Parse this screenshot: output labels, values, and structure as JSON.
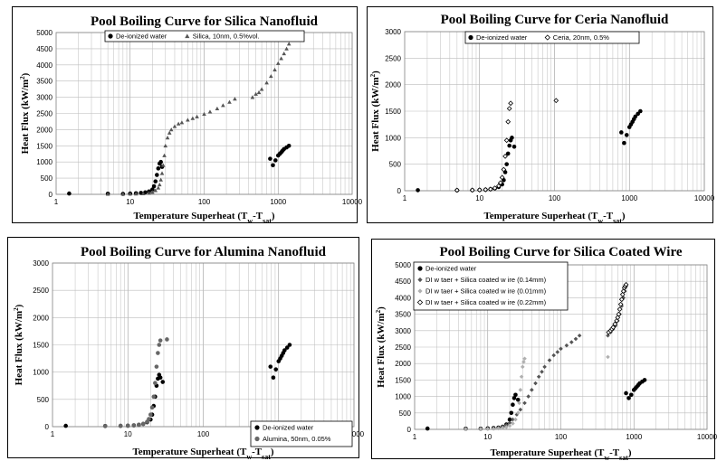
{
  "chart_data": [
    {
      "type": "scatter",
      "title": "Pool Boiling Curve for Silica Nanofluid",
      "xlabel": "Temperature Superheat (Tw-Tsat)",
      "ylabel": "Heat Flux (kW/m2)",
      "xscale": "log",
      "xlim": [
        1,
        10000
      ],
      "ylim": [
        0,
        5000
      ],
      "xticks": [
        "1",
        "10",
        "100",
        "1000",
        "10000"
      ],
      "yticks": [
        "0",
        "500",
        "1000",
        "1500",
        "2000",
        "2500",
        "3000",
        "3500",
        "4000",
        "4500",
        "5000"
      ],
      "grid": true,
      "legend_position": "top",
      "series": [
        {
          "name": "De-ionized water",
          "marker": "circle",
          "color": "#000000",
          "x": [
            1.5,
            5,
            8,
            10,
            12,
            14,
            16,
            18,
            20,
            21,
            22,
            23,
            24,
            25,
            26,
            27,
            780,
            850,
            920,
            1000,
            1050,
            1100,
            1150,
            1200,
            1300,
            1400
          ],
          "y": [
            25,
            20,
            15,
            25,
            35,
            45,
            60,
            90,
            150,
            250,
            400,
            600,
            800,
            950,
            1000,
            850,
            1100,
            900,
            1050,
            1200,
            1250,
            1300,
            1350,
            1400,
            1450,
            1500
          ]
        },
        {
          "name": "Silica, 10nm, 0.5%vol.",
          "marker": "triangle",
          "color": "#555555",
          "x": [
            5,
            8,
            10,
            12,
            15,
            18,
            20,
            22,
            24,
            25,
            26,
            27,
            28,
            29,
            30,
            32,
            34,
            36,
            40,
            45,
            50,
            60,
            70,
            80,
            100,
            120,
            150,
            180,
            220,
            260,
            450,
            500,
            550,
            600,
            700,
            800,
            900,
            1000,
            1100,
            1200,
            1300,
            1400
          ],
          "y": [
            10,
            12,
            15,
            18,
            25,
            40,
            70,
            120,
            200,
            300,
            450,
            650,
            900,
            1200,
            1500,
            1750,
            1900,
            2000,
            2100,
            2180,
            2220,
            2300,
            2350,
            2400,
            2480,
            2550,
            2650,
            2750,
            2850,
            2950,
            3000,
            3100,
            3150,
            3250,
            3450,
            3650,
            3850,
            4050,
            4200,
            4350,
            4500,
            4650
          ]
        }
      ]
    },
    {
      "type": "scatter",
      "title": "Pool Boiling Curve for Ceria Nanofluid",
      "xlabel": "Temperature Superheat (Tw-Tsat)",
      "ylabel": "Heat Flux (kW/m2)",
      "xscale": "log",
      "xlim": [
        1,
        10000
      ],
      "ylim": [
        0,
        3000
      ],
      "xticks": [
        "1",
        "10",
        "100",
        "1000",
        "10000"
      ],
      "yticks": [
        "0",
        "500",
        "1000",
        "1500",
        "2000",
        "2500",
        "3000"
      ],
      "grid": true,
      "legend_position": "top",
      "series": [
        {
          "name": "De-ionized water",
          "marker": "circle",
          "color": "#000000",
          "x": [
            1.5,
            5,
            8,
            10,
            12,
            14,
            16,
            18,
            20,
            21,
            22,
            23,
            24,
            25,
            26,
            27,
            29,
            780,
            850,
            920,
            1000,
            1050,
            1100,
            1150,
            1200,
            1300,
            1400
          ],
          "y": [
            10,
            8,
            10,
            15,
            20,
            30,
            45,
            70,
            120,
            200,
            350,
            500,
            700,
            850,
            950,
            1000,
            830,
            1100,
            900,
            1050,
            1200,
            1250,
            1300,
            1350,
            1400,
            1450,
            1500
          ]
        },
        {
          "name": "Ceria, 20nm, 0.5%",
          "marker": "diamond-open",
          "color": "#000000",
          "x": [
            5,
            8,
            10,
            12,
            14,
            16,
            18,
            19,
            20,
            21,
            22,
            23,
            24,
            25,
            26,
            105
          ],
          "y": [
            10,
            12,
            15,
            20,
            30,
            50,
            90,
            150,
            250,
            400,
            650,
            950,
            1300,
            1550,
            1650,
            1700
          ]
        }
      ]
    },
    {
      "type": "scatter",
      "title": "Pool Boiling Curve for Alumina Nanofluid",
      "xlabel": "Temperature Superheat (Tw-Tsat)",
      "ylabel": "Heat Flux (kW/m2)",
      "xscale": "log",
      "xlim": [
        1,
        10000
      ],
      "ylim": [
        0,
        3000
      ],
      "xticks": [
        "1",
        "10",
        "100",
        "1000",
        "10000"
      ],
      "yticks": [
        "0",
        "500",
        "1000",
        "1500",
        "2000",
        "2500",
        "3000"
      ],
      "grid": true,
      "legend_position": "bottom-right",
      "series": [
        {
          "name": "De-ionized water",
          "marker": "circle",
          "color": "#000000",
          "x": [
            1.5,
            5,
            8,
            10,
            12,
            14,
            16,
            18,
            20,
            21,
            22,
            23,
            24,
            25,
            26,
            27,
            29,
            780,
            850,
            920,
            1000,
            1050,
            1100,
            1150,
            1200,
            1300,
            1400
          ],
          "y": [
            15,
            12,
            15,
            18,
            25,
            35,
            50,
            80,
            130,
            220,
            380,
            550,
            750,
            880,
            950,
            900,
            820,
            1100,
            900,
            1050,
            1200,
            1250,
            1300,
            1350,
            1400,
            1450,
            1500
          ]
        },
        {
          "name": "Alumina, 50nm, 0.05%",
          "marker": "circle",
          "color": "#666666",
          "x": [
            5,
            8,
            10,
            12,
            14,
            16,
            18,
            19,
            20,
            21,
            22,
            23,
            24,
            25,
            26,
            27,
            33
          ],
          "y": [
            10,
            12,
            15,
            20,
            30,
            50,
            90,
            140,
            220,
            350,
            550,
            800,
            1100,
            1350,
            1500,
            1580,
            1600
          ]
        }
      ]
    },
    {
      "type": "scatter",
      "title": "Pool Boiling Curve for Silica Coated Wire",
      "xlabel": "Temperature Superheat (Tw-Tsat)",
      "ylabel": "Heat Flux (kW/m2)",
      "xscale": "log",
      "xlim": [
        1,
        10000
      ],
      "ylim": [
        0,
        5000
      ],
      "xticks": [
        "1",
        "10",
        "100",
        "1000",
        "10000"
      ],
      "yticks": [
        "0",
        "500",
        "1000",
        "1500",
        "2000",
        "2500",
        "3000",
        "3500",
        "4000",
        "4500",
        "5000"
      ],
      "grid": true,
      "legend_position": "top-left",
      "series": [
        {
          "name": "De-ionized water",
          "marker": "circle",
          "color": "#000000",
          "x": [
            1.5,
            5,
            8,
            10,
            12,
            14,
            16,
            18,
            20,
            21,
            22,
            23,
            24,
            26,
            780,
            850,
            920,
            1000,
            1050,
            1100,
            1150,
            1200,
            1300,
            1400
          ],
          "y": [
            25,
            20,
            20,
            30,
            40,
            55,
            80,
            150,
            300,
            500,
            750,
            950,
            1050,
            900,
            1100,
            950,
            1050,
            1200,
            1250,
            1300,
            1350,
            1400,
            1450,
            1500
          ]
        },
        {
          "name": "DI w taer + Silica coated w ire (0.14mm)",
          "marker": "diamond",
          "color": "#555555",
          "x": [
            5,
            8,
            10,
            12,
            14,
            16,
            18,
            20,
            22,
            25,
            28,
            32,
            36,
            40,
            45,
            50,
            55,
            60,
            70,
            80,
            90,
            100,
            120,
            140,
            160,
            180,
            440,
            480,
            520,
            560,
            600,
            640,
            680,
            720,
            750,
            780
          ],
          "y": [
            15,
            15,
            20,
            30,
            50,
            80,
            130,
            200,
            300,
            450,
            600,
            800,
            1000,
            1200,
            1400,
            1600,
            1750,
            1900,
            2100,
            2250,
            2350,
            2450,
            2550,
            2650,
            2750,
            2850,
            2850,
            2950,
            3050,
            3150,
            3300,
            3500,
            3750,
            4000,
            4200,
            4350
          ]
        },
        {
          "name": "DI w taer + Silica coated w ire (0.01mm)",
          "marker": "diamond",
          "color": "#b0b0b0",
          "x": [
            5,
            8,
            10,
            12,
            14,
            16,
            18,
            20,
            22,
            24,
            26,
            27,
            28,
            29,
            30,
            31,
            32,
            440
          ],
          "y": [
            10,
            12,
            15,
            20,
            30,
            45,
            70,
            110,
            180,
            300,
            500,
            800,
            1200,
            1600,
            1900,
            2050,
            2150,
            2200
          ]
        },
        {
          "name": "DI w taer + Silica coated w ire (0.22mm)",
          "marker": "diamond-open",
          "color": "#000000",
          "x": [
            450,
            480,
            500,
            520,
            550,
            580,
            600,
            620,
            640,
            660,
            680,
            700,
            720,
            740,
            760,
            780
          ],
          "y": [
            2950,
            3000,
            3050,
            3100,
            3200,
            3300,
            3400,
            3500,
            3650,
            3800,
            3950,
            4100,
            4200,
            4300,
            4350,
            4400
          ]
        }
      ]
    }
  ]
}
